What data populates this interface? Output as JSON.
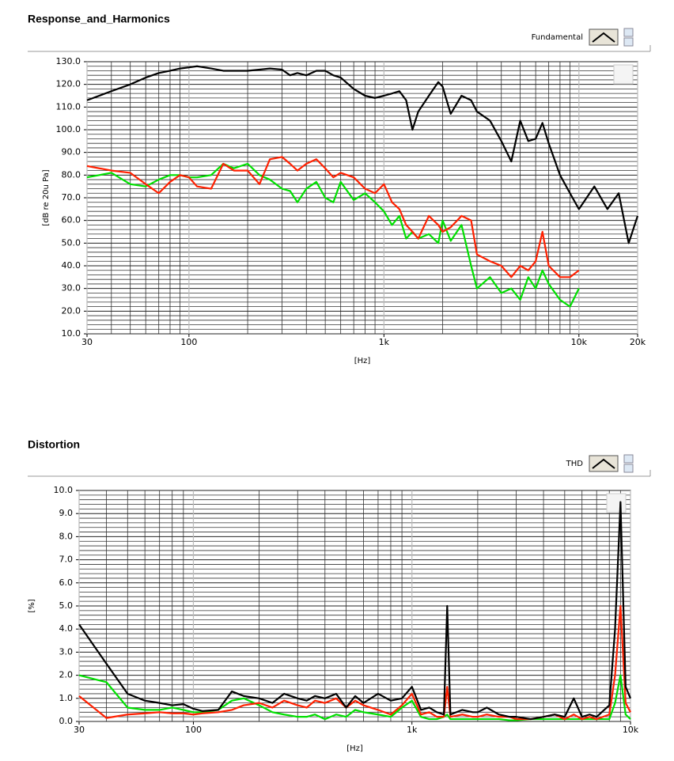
{
  "chart_data": [
    {
      "type": "line",
      "title": "Response_and_Harmonics",
      "legend_label": "Fundamental",
      "x_label": "[Hz]",
      "y_label": "[dB re 20u Pa]",
      "log_x": true,
      "grid": true,
      "xlim": [
        30,
        20000
      ],
      "ylim": [
        10,
        130
      ],
      "xticks": [
        30,
        100,
        {
          "value": 1000,
          "label": "1k"
        },
        {
          "value": 10000,
          "label": "10k"
        },
        {
          "value": 20000,
          "label": "20k"
        }
      ],
      "yticks": [
        {
          "value": 10,
          "label": "10.0"
        },
        {
          "value": 20,
          "label": "20.0"
        },
        {
          "value": 30,
          "label": "30.0"
        },
        {
          "value": 40,
          "label": "40.0"
        },
        {
          "value": 50,
          "label": "50.0"
        },
        {
          "value": 60,
          "label": "60.0"
        },
        {
          "value": 70,
          "label": "70.0"
        },
        {
          "value": 80,
          "label": "80.0"
        },
        {
          "value": 90,
          "label": "90.0"
        },
        {
          "value": 100,
          "label": "100.0"
        },
        {
          "value": 110,
          "label": "110.0"
        },
        {
          "value": 120,
          "label": "120.0"
        },
        {
          "value": 130,
          "label": "130.0"
        }
      ],
      "x": [
        30,
        40,
        50,
        60,
        70,
        80,
        90,
        100,
        110,
        130,
        150,
        170,
        200,
        230,
        260,
        300,
        330,
        360,
        400,
        450,
        500,
        550,
        600,
        700,
        800,
        900,
        1000,
        1100,
        1200,
        1300,
        1400,
        1500,
        1700,
        1900,
        2000,
        2200,
        2500,
        2800,
        3000,
        3500,
        4000,
        4500,
        5000,
        5500,
        6000,
        6500,
        7000,
        8000,
        9000,
        10000,
        12000,
        14000,
        16000,
        18000,
        20000
      ],
      "series": [
        {
          "color": "#00e000",
          "values": [
            79,
            81,
            76,
            75,
            78,
            80,
            80,
            79,
            79,
            80,
            85,
            83,
            85,
            80,
            78,
            74,
            73,
            68,
            74,
            77,
            70,
            68,
            77,
            69,
            72,
            68,
            64,
            58,
            62,
            52,
            55,
            52,
            54,
            50,
            60,
            51,
            58,
            40,
            30,
            35,
            28,
            30,
            25,
            35,
            30,
            38,
            32,
            25,
            22,
            30,
            null,
            null,
            null,
            null,
            null
          ]
        },
        {
          "color": "#ff2000",
          "values": [
            84,
            82,
            81,
            76,
            72,
            77,
            80,
            79,
            75,
            74,
            85,
            82,
            82,
            76,
            87,
            88,
            85,
            82,
            85,
            87,
            83,
            79,
            81,
            79,
            74,
            72,
            76,
            68,
            65,
            58,
            55,
            52,
            62,
            58,
            55,
            57,
            62,
            60,
            45,
            42,
            40,
            35,
            40,
            38,
            42,
            55,
            40,
            35,
            35,
            38,
            null,
            null,
            null,
            null,
            null
          ]
        },
        {
          "color": "#000000",
          "values": [
            113,
            117,
            120,
            123,
            125,
            126,
            127,
            127.5,
            128,
            127,
            126,
            126,
            126,
            126.5,
            127,
            126.5,
            124,
            125,
            124,
            126,
            126,
            124,
            123,
            118,
            115,
            114,
            115,
            116,
            117,
            113,
            100,
            108,
            115,
            121,
            119,
            107,
            115,
            113,
            108,
            104,
            95,
            86,
            104,
            95,
            96,
            103,
            94,
            80,
            72,
            65,
            75,
            65,
            72,
            50,
            62
          ]
        }
      ]
    },
    {
      "type": "line",
      "title": "Distortion",
      "legend_label": "THD",
      "x_label": "[Hz]",
      "y_label": "[%]",
      "log_x": true,
      "grid": true,
      "xlim": [
        30,
        10000
      ],
      "ylim": [
        0,
        10
      ],
      "xticks": [
        30,
        100,
        {
          "value": 1000,
          "label": "1k"
        },
        {
          "value": 10000,
          "label": "10k"
        }
      ],
      "yticks": [
        {
          "value": 0,
          "label": "0.0"
        },
        {
          "value": 1,
          "label": "1.0"
        },
        {
          "value": 2,
          "label": "2.0"
        },
        {
          "value": 3,
          "label": "3.0"
        },
        {
          "value": 4,
          "label": "4.0"
        },
        {
          "value": 5,
          "label": "5.0"
        },
        {
          "value": 6,
          "label": "6.0"
        },
        {
          "value": 7,
          "label": "7.0"
        },
        {
          "value": 8,
          "label": "8.0"
        },
        {
          "value": 9,
          "label": "9.0"
        },
        {
          "value": 10,
          "label": "10.0"
        }
      ],
      "x": [
        30,
        40,
        50,
        60,
        70,
        80,
        90,
        100,
        110,
        130,
        150,
        170,
        200,
        230,
        260,
        300,
        330,
        360,
        400,
        450,
        500,
        550,
        600,
        700,
        800,
        900,
        1000,
        1100,
        1200,
        1300,
        1400,
        1450,
        1500,
        1700,
        1900,
        2000,
        2200,
        2500,
        2800,
        3000,
        3500,
        4000,
        4500,
        5000,
        5500,
        6000,
        6500,
        7000,
        8000,
        8500,
        9000,
        9500,
        10000
      ],
      "series": [
        {
          "color": "#00e000",
          "values": [
            2.0,
            1.7,
            0.6,
            0.5,
            0.5,
            0.6,
            0.5,
            0.4,
            0.4,
            0.5,
            0.9,
            1.0,
            0.7,
            0.4,
            0.3,
            0.2,
            0.2,
            0.3,
            0.1,
            0.3,
            0.2,
            0.5,
            0.4,
            0.3,
            0.2,
            0.6,
            0.9,
            0.2,
            0.1,
            0.1,
            0.2,
            0.3,
            0.1,
            0.1,
            0.1,
            0.1,
            0.1,
            0.1,
            0.05,
            0.05,
            0.1,
            0.1,
            0.1,
            0.1,
            0.1,
            0.1,
            0.1,
            0.1,
            0.1,
            0.8,
            2.0,
            0.3,
            0.1
          ]
        },
        {
          "color": "#ff2000",
          "values": [
            1.1,
            0.15,
            0.3,
            0.35,
            0.4,
            0.35,
            0.35,
            0.3,
            0.35,
            0.4,
            0.5,
            0.7,
            0.8,
            0.6,
            0.9,
            0.7,
            0.6,
            0.9,
            0.8,
            1.0,
            0.6,
            0.9,
            0.7,
            0.5,
            0.3,
            0.7,
            1.2,
            0.3,
            0.4,
            0.2,
            0.2,
            1.5,
            0.2,
            0.3,
            0.2,
            0.2,
            0.3,
            0.2,
            0.2,
            0.1,
            0.1,
            0.2,
            0.3,
            0.1,
            0.3,
            0.1,
            0.2,
            0.1,
            0.3,
            2.0,
            5.0,
            0.8,
            0.4
          ]
        },
        {
          "color": "#000000",
          "values": [
            4.2,
            2.5,
            1.2,
            0.9,
            0.8,
            0.7,
            0.75,
            0.55,
            0.45,
            0.5,
            1.3,
            1.1,
            1.0,
            0.8,
            1.2,
            1.0,
            0.9,
            1.1,
            1.0,
            1.2,
            0.6,
            1.1,
            0.8,
            1.2,
            0.9,
            1.0,
            1.5,
            0.5,
            0.6,
            0.4,
            0.3,
            5.0,
            0.3,
            0.5,
            0.4,
            0.4,
            0.6,
            0.3,
            0.2,
            0.2,
            0.1,
            0.2,
            0.3,
            0.2,
            1.0,
            0.2,
            0.3,
            0.2,
            0.7,
            4.0,
            9.5,
            1.5,
            1.0
          ]
        }
      ]
    }
  ]
}
